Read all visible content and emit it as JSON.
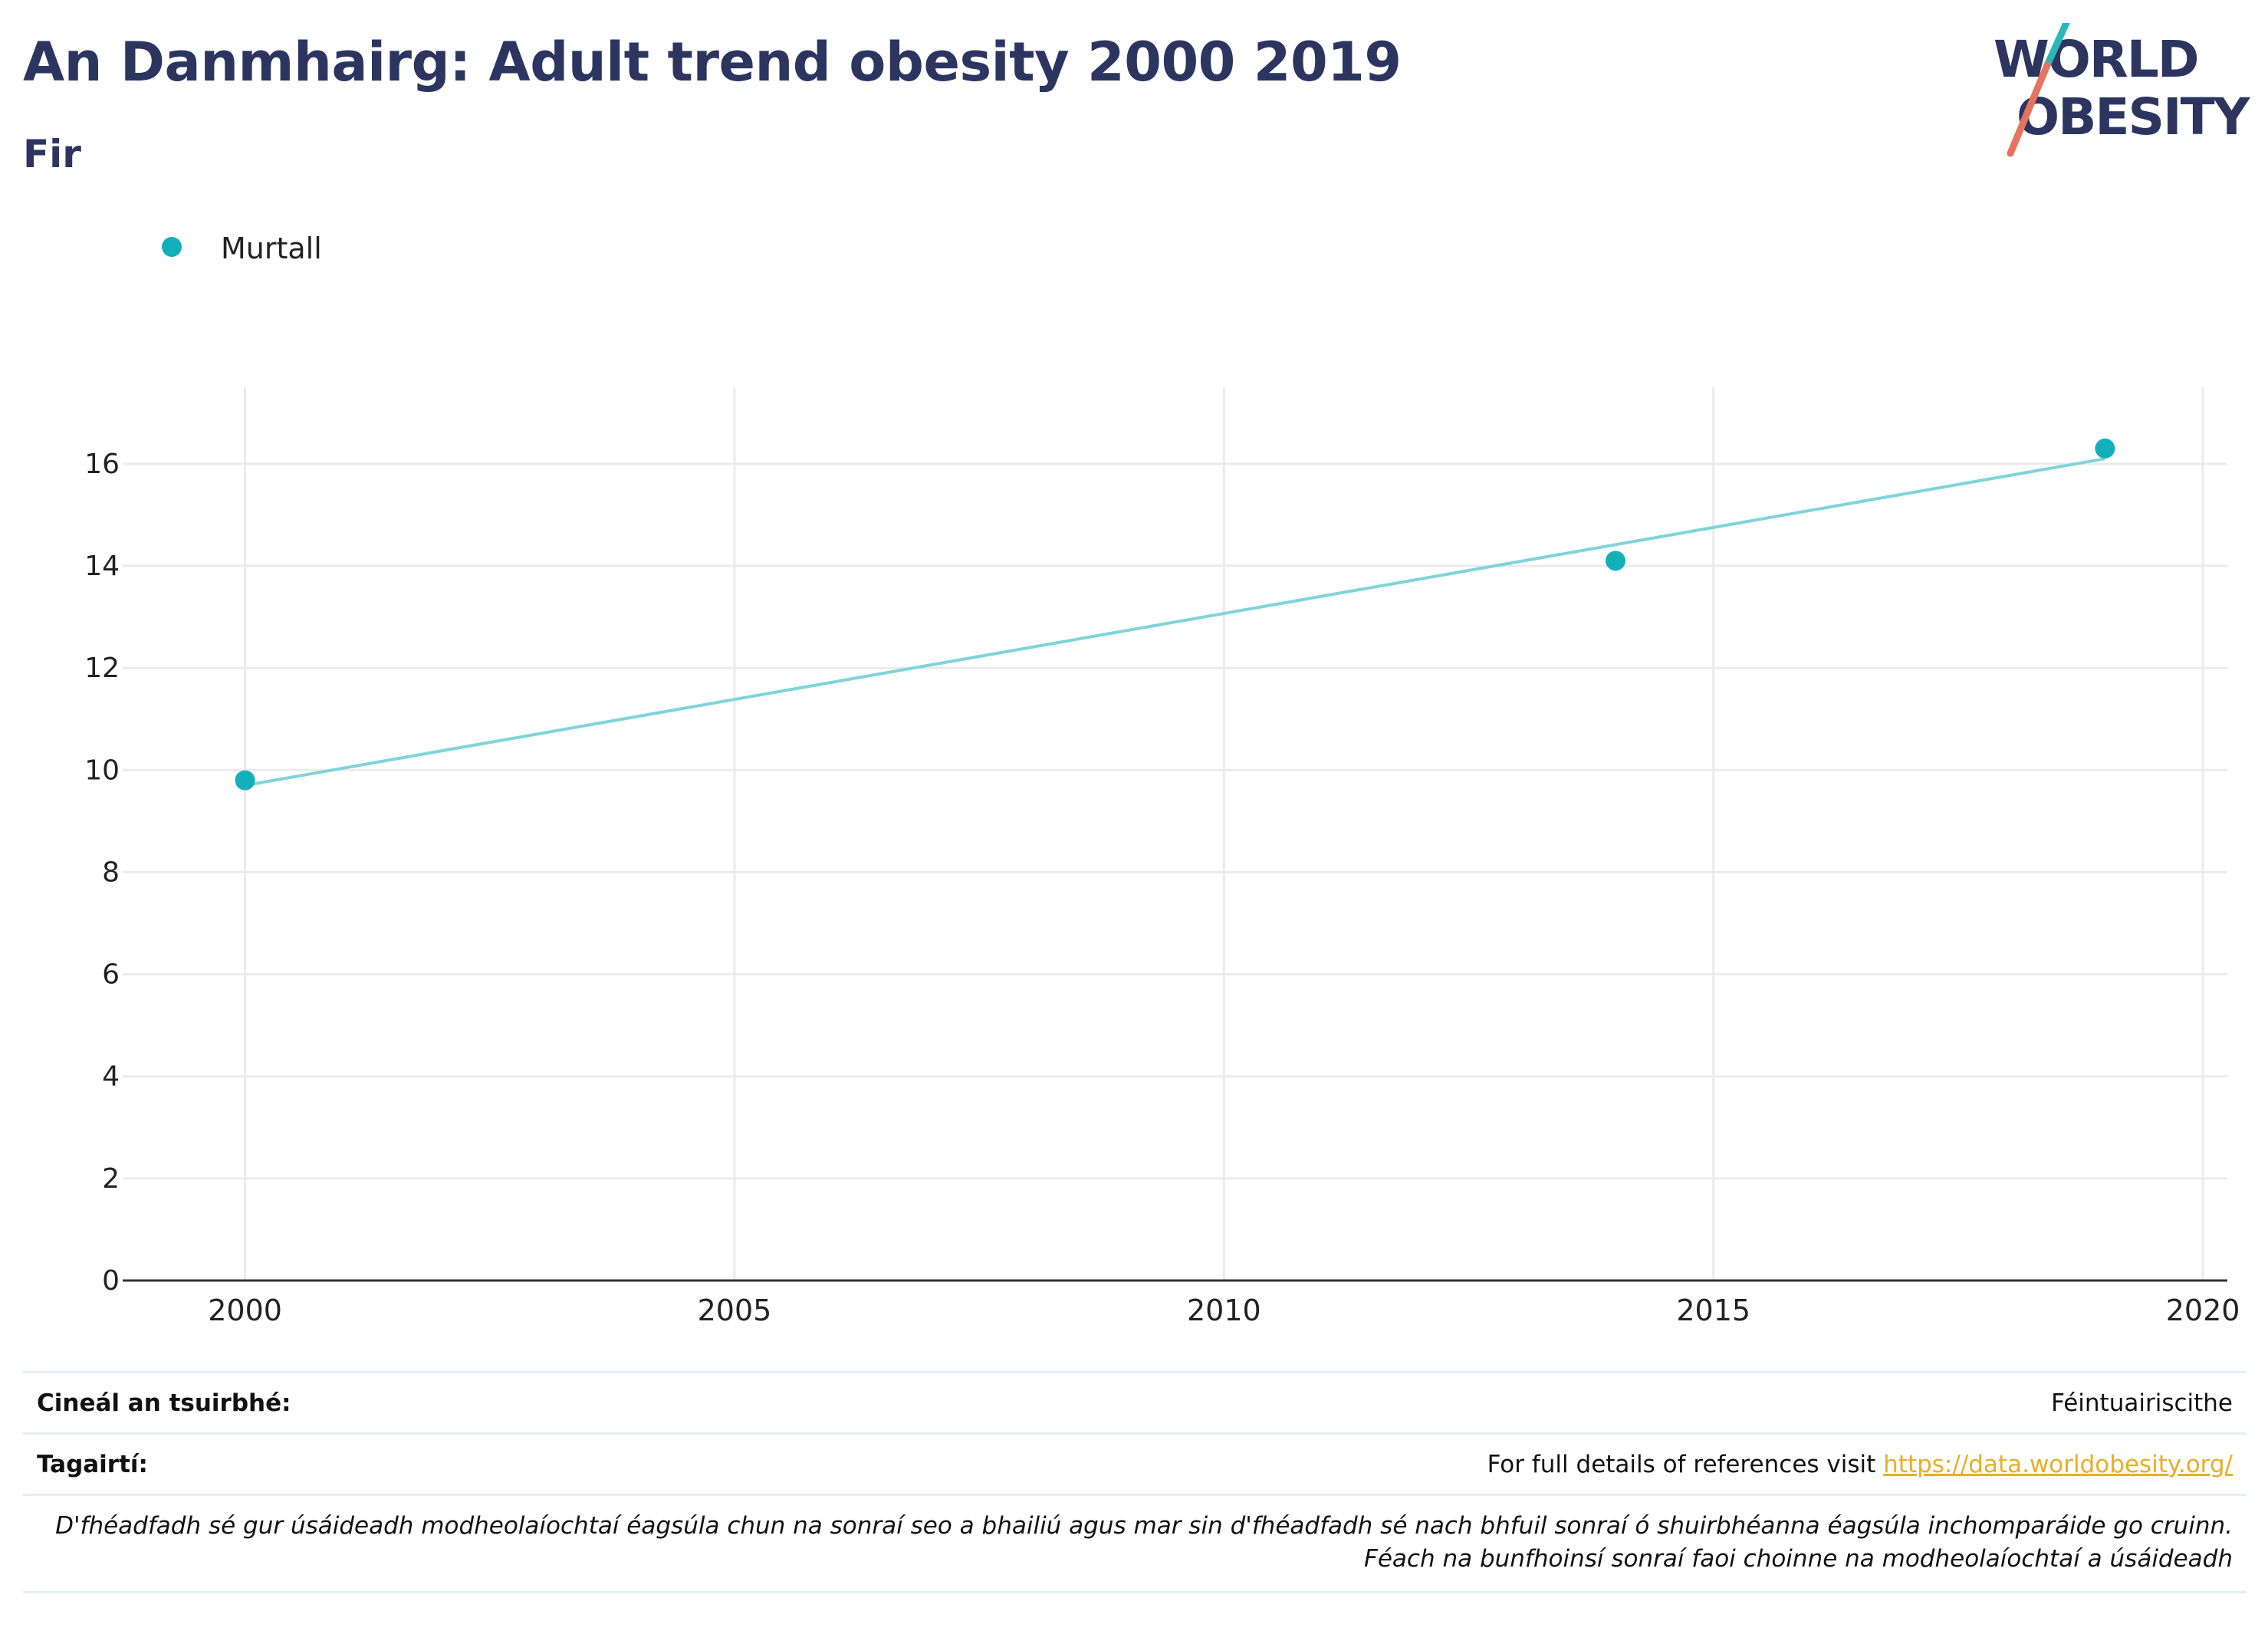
{
  "header": {
    "title": "An Danmhairg: Adult trend obesity 2000 2019",
    "subtitle": "Fir"
  },
  "logo": {
    "line1": "WORLD",
    "line2": "OBESITY"
  },
  "chart_data": {
    "type": "scatter",
    "legend_position": "top-left",
    "series": [
      {
        "name": "Murtall",
        "color": "#12b0bb",
        "points": [
          {
            "x": 2000,
            "y": 9.8
          },
          {
            "x": 2014,
            "y": 14.1
          },
          {
            "x": 2019,
            "y": 16.3
          }
        ]
      }
    ],
    "trendline": {
      "color": "#7fd4d9",
      "start": {
        "x": 2000,
        "y": 9.7
      },
      "end": {
        "x": 2019,
        "y": 16.1
      }
    },
    "xlim": [
      1998.75,
      2020.25
    ],
    "ylim": [
      0,
      17.5
    ],
    "x_ticks": [
      2000,
      2005,
      2010,
      2015,
      2020
    ],
    "y_ticks": [
      0,
      2,
      4,
      6,
      8,
      10,
      12,
      14,
      16
    ],
    "grid": true
  },
  "footer": {
    "survey_type_label": "Cineál an tsuirbhé:",
    "survey_type_value": "Féintuairiscithe",
    "references_label": "Tagairtí:",
    "references_text": "For full details of references visit ",
    "references_link": "https://data.worldobesity.org/",
    "note_line1": "D'fhéadfadh sé gur úsáideadh modheolaíochtaí éagsúla chun na sonraí seo a bhailiú agus mar sin d'fhéadfadh sé nach bhfuil sonraí ó shuirbhéanna éagsúla inchomparáide go cruinn.",
    "note_line2": "Féach na bunfhoinsí sonraí faoi choinne na modheolaíochtaí a úsáideadh"
  }
}
